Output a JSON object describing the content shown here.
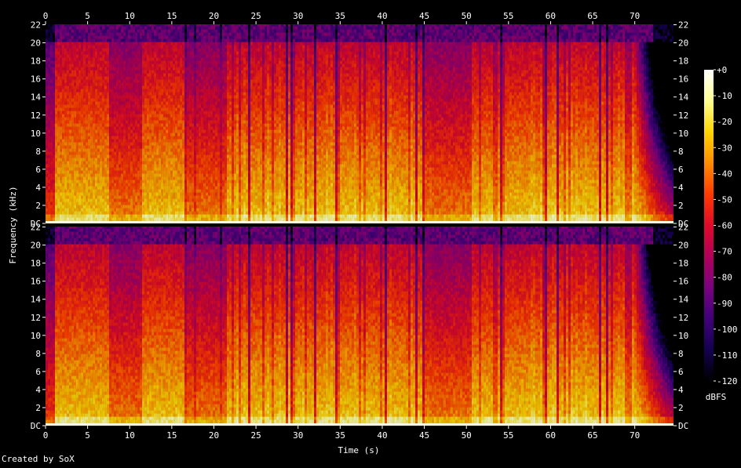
{
  "chart_data": {
    "type": "heatmap",
    "subtype": "spectrogram",
    "channels": 2,
    "x_axis": {
      "label": "Time (s)",
      "unit": "s",
      "range": [
        0,
        74.6
      ],
      "ticks": [
        0,
        5,
        10,
        15,
        20,
        25,
        30,
        35,
        40,
        45,
        50,
        55,
        60,
        65,
        70
      ],
      "tick_labels": [
        "0",
        "5",
        "10",
        "15",
        "20",
        "25",
        "30",
        "35",
        "40",
        "45",
        "50",
        "55",
        "60",
        "65",
        "70"
      ]
    },
    "y_axis": {
      "label": "Frequency (kHz)",
      "unit": "kHz",
      "range": [
        0,
        22.05
      ],
      "ticks": [
        0,
        2,
        4,
        6,
        8,
        10,
        12,
        14,
        16,
        18,
        20,
        22
      ],
      "tick_labels": [
        "DC",
        "2",
        "4",
        "6",
        "8",
        "10",
        "12",
        "14",
        "16",
        "18",
        "20",
        "22"
      ]
    },
    "colorbar": {
      "label": "dBFS",
      "range": [
        -120,
        0
      ],
      "ticks": [
        0,
        -10,
        -20,
        -30,
        -40,
        -50,
        -60,
        -70,
        -80,
        -90,
        -100,
        -110,
        -120
      ],
      "tick_labels": [
        "+0",
        "-10",
        "-20",
        "-30",
        "-40",
        "-50",
        "-60",
        "-70",
        "-80",
        "-90",
        "-100",
        "-110",
        "-120"
      ],
      "stops": [
        "#ffffff",
        "#ffff90",
        "#ffd400",
        "#ff8c00",
        "#ff3a00",
        "#e00a2a",
        "#b0005a",
        "#7a0080",
        "#40007a",
        "#140050",
        "#000000"
      ]
    },
    "features": {
      "lowpass_cutoff_khz": 20,
      "quiet_sections_s": [
        [
          7.5,
          11.5
        ],
        [
          16.5,
          21.5
        ],
        [
          46,
          50.5
        ]
      ],
      "fade_out_start_s": 70
    }
  },
  "footer": {
    "credit": "Created by SoX"
  }
}
